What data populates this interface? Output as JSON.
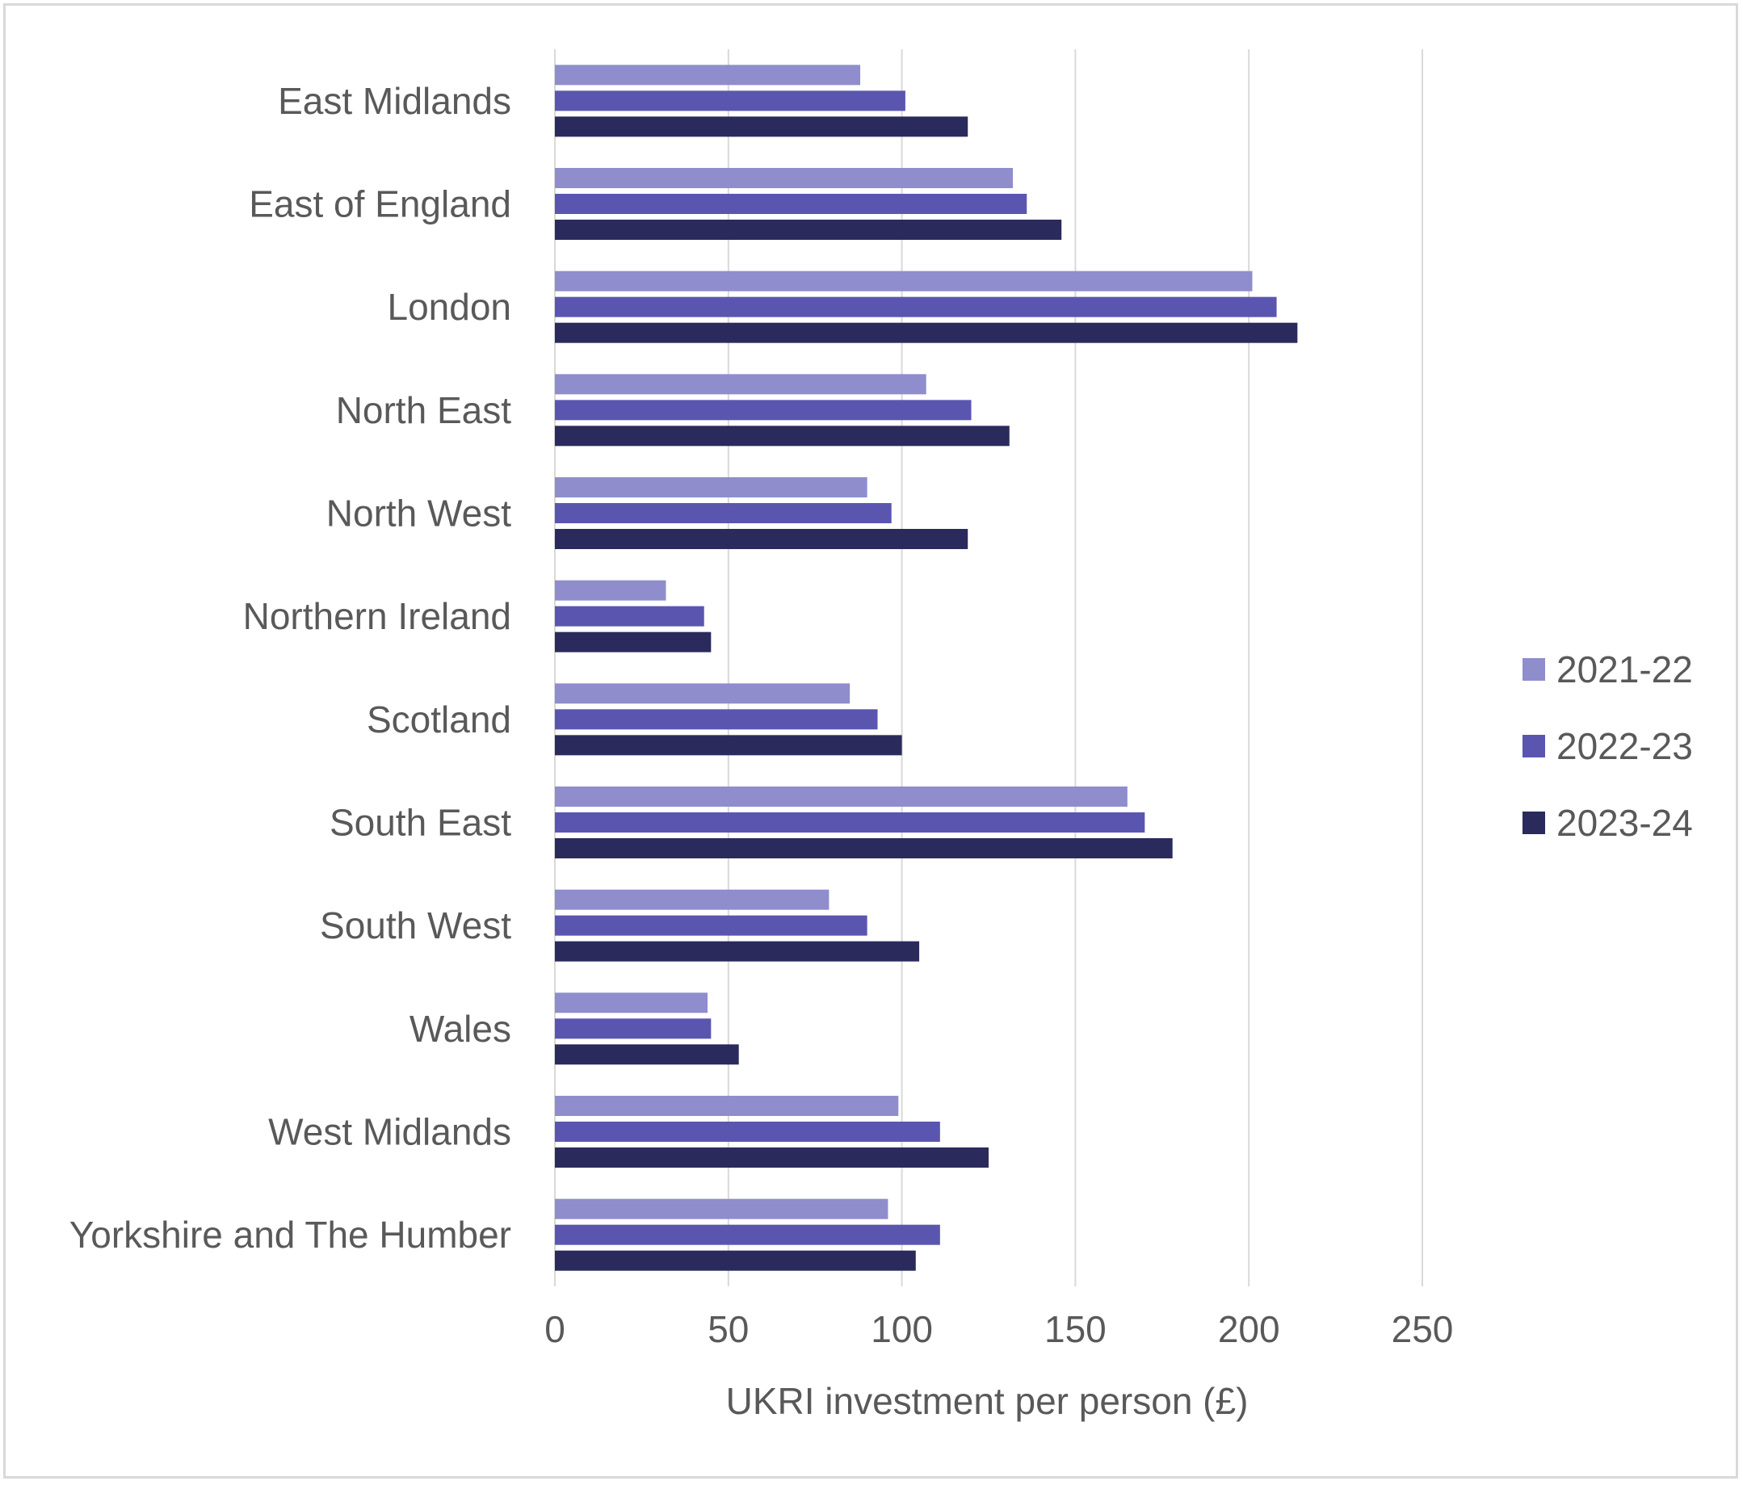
{
  "chart_data": {
    "type": "bar",
    "orientation": "horizontal",
    "categories": [
      "East Midlands",
      "East of England",
      "London",
      "North East",
      "North West",
      "Northern Ireland",
      "Scotland",
      "South East",
      "South West",
      "Wales",
      "West Midlands",
      "Yorkshire and The Humber"
    ],
    "series": [
      {
        "name": "2021-22",
        "color": "#8f8dcc",
        "values": [
          88,
          132,
          201,
          107,
          90,
          32,
          85,
          165,
          79,
          44,
          99,
          96
        ]
      },
      {
        "name": "2022-23",
        "color": "#5a56b0",
        "values": [
          101,
          136,
          208,
          120,
          97,
          43,
          93,
          170,
          90,
          45,
          111,
          111
        ]
      },
      {
        "name": "2023-24",
        "color": "#2b2a5c",
        "values": [
          119,
          146,
          214,
          131,
          119,
          45,
          100,
          178,
          105,
          53,
          125,
          104
        ]
      }
    ],
    "xlabel": "UKRI investment per person (£)",
    "ylabel": "",
    "xlim": [
      0,
      250
    ],
    "xticks": [
      0,
      50,
      100,
      150,
      200,
      250
    ],
    "grid": "vertical",
    "legend": "right"
  }
}
